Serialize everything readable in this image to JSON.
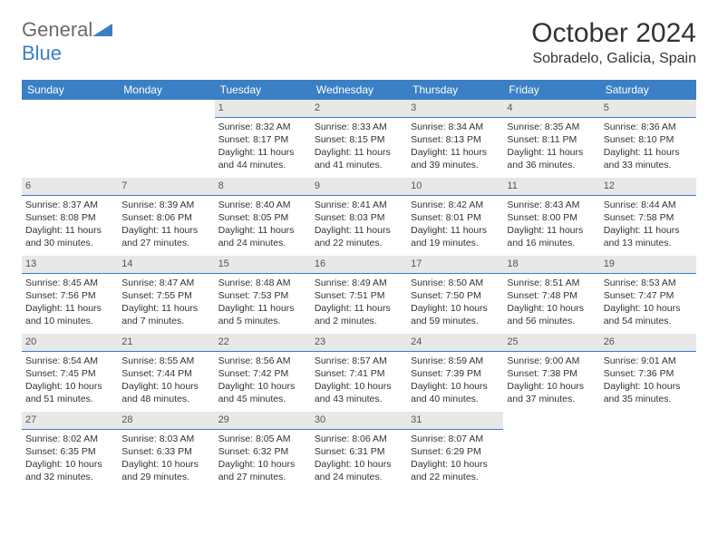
{
  "logo": {
    "word1": "General",
    "word2": "Blue"
  },
  "title": "October 2024",
  "subtitle": "Sobradelo, Galicia, Spain",
  "colors": {
    "header_bg": "#3b7fc4",
    "header_text": "#ffffff",
    "daynum_bg": "#e8e8e8",
    "daynum_border": "#3b7fc4",
    "text": "#333333",
    "logo_gray": "#6b6b6b",
    "logo_blue": "#3b7fc4"
  },
  "day_labels": [
    "Sunday",
    "Monday",
    "Tuesday",
    "Wednesday",
    "Thursday",
    "Friday",
    "Saturday"
  ],
  "weeks": [
    [
      null,
      null,
      {
        "d": "1",
        "sr": "Sunrise: 8:32 AM",
        "ss": "Sunset: 8:17 PM",
        "dl1": "Daylight: 11 hours",
        "dl2": "and 44 minutes."
      },
      {
        "d": "2",
        "sr": "Sunrise: 8:33 AM",
        "ss": "Sunset: 8:15 PM",
        "dl1": "Daylight: 11 hours",
        "dl2": "and 41 minutes."
      },
      {
        "d": "3",
        "sr": "Sunrise: 8:34 AM",
        "ss": "Sunset: 8:13 PM",
        "dl1": "Daylight: 11 hours",
        "dl2": "and 39 minutes."
      },
      {
        "d": "4",
        "sr": "Sunrise: 8:35 AM",
        "ss": "Sunset: 8:11 PM",
        "dl1": "Daylight: 11 hours",
        "dl2": "and 36 minutes."
      },
      {
        "d": "5",
        "sr": "Sunrise: 8:36 AM",
        "ss": "Sunset: 8:10 PM",
        "dl1": "Daylight: 11 hours",
        "dl2": "and 33 minutes."
      }
    ],
    [
      {
        "d": "6",
        "sr": "Sunrise: 8:37 AM",
        "ss": "Sunset: 8:08 PM",
        "dl1": "Daylight: 11 hours",
        "dl2": "and 30 minutes."
      },
      {
        "d": "7",
        "sr": "Sunrise: 8:39 AM",
        "ss": "Sunset: 8:06 PM",
        "dl1": "Daylight: 11 hours",
        "dl2": "and 27 minutes."
      },
      {
        "d": "8",
        "sr": "Sunrise: 8:40 AM",
        "ss": "Sunset: 8:05 PM",
        "dl1": "Daylight: 11 hours",
        "dl2": "and 24 minutes."
      },
      {
        "d": "9",
        "sr": "Sunrise: 8:41 AM",
        "ss": "Sunset: 8:03 PM",
        "dl1": "Daylight: 11 hours",
        "dl2": "and 22 minutes."
      },
      {
        "d": "10",
        "sr": "Sunrise: 8:42 AM",
        "ss": "Sunset: 8:01 PM",
        "dl1": "Daylight: 11 hours",
        "dl2": "and 19 minutes."
      },
      {
        "d": "11",
        "sr": "Sunrise: 8:43 AM",
        "ss": "Sunset: 8:00 PM",
        "dl1": "Daylight: 11 hours",
        "dl2": "and 16 minutes."
      },
      {
        "d": "12",
        "sr": "Sunrise: 8:44 AM",
        "ss": "Sunset: 7:58 PM",
        "dl1": "Daylight: 11 hours",
        "dl2": "and 13 minutes."
      }
    ],
    [
      {
        "d": "13",
        "sr": "Sunrise: 8:45 AM",
        "ss": "Sunset: 7:56 PM",
        "dl1": "Daylight: 11 hours",
        "dl2": "and 10 minutes."
      },
      {
        "d": "14",
        "sr": "Sunrise: 8:47 AM",
        "ss": "Sunset: 7:55 PM",
        "dl1": "Daylight: 11 hours",
        "dl2": "and 7 minutes."
      },
      {
        "d": "15",
        "sr": "Sunrise: 8:48 AM",
        "ss": "Sunset: 7:53 PM",
        "dl1": "Daylight: 11 hours",
        "dl2": "and 5 minutes."
      },
      {
        "d": "16",
        "sr": "Sunrise: 8:49 AM",
        "ss": "Sunset: 7:51 PM",
        "dl1": "Daylight: 11 hours",
        "dl2": "and 2 minutes."
      },
      {
        "d": "17",
        "sr": "Sunrise: 8:50 AM",
        "ss": "Sunset: 7:50 PM",
        "dl1": "Daylight: 10 hours",
        "dl2": "and 59 minutes."
      },
      {
        "d": "18",
        "sr": "Sunrise: 8:51 AM",
        "ss": "Sunset: 7:48 PM",
        "dl1": "Daylight: 10 hours",
        "dl2": "and 56 minutes."
      },
      {
        "d": "19",
        "sr": "Sunrise: 8:53 AM",
        "ss": "Sunset: 7:47 PM",
        "dl1": "Daylight: 10 hours",
        "dl2": "and 54 minutes."
      }
    ],
    [
      {
        "d": "20",
        "sr": "Sunrise: 8:54 AM",
        "ss": "Sunset: 7:45 PM",
        "dl1": "Daylight: 10 hours",
        "dl2": "and 51 minutes."
      },
      {
        "d": "21",
        "sr": "Sunrise: 8:55 AM",
        "ss": "Sunset: 7:44 PM",
        "dl1": "Daylight: 10 hours",
        "dl2": "and 48 minutes."
      },
      {
        "d": "22",
        "sr": "Sunrise: 8:56 AM",
        "ss": "Sunset: 7:42 PM",
        "dl1": "Daylight: 10 hours",
        "dl2": "and 45 minutes."
      },
      {
        "d": "23",
        "sr": "Sunrise: 8:57 AM",
        "ss": "Sunset: 7:41 PM",
        "dl1": "Daylight: 10 hours",
        "dl2": "and 43 minutes."
      },
      {
        "d": "24",
        "sr": "Sunrise: 8:59 AM",
        "ss": "Sunset: 7:39 PM",
        "dl1": "Daylight: 10 hours",
        "dl2": "and 40 minutes."
      },
      {
        "d": "25",
        "sr": "Sunrise: 9:00 AM",
        "ss": "Sunset: 7:38 PM",
        "dl1": "Daylight: 10 hours",
        "dl2": "and 37 minutes."
      },
      {
        "d": "26",
        "sr": "Sunrise: 9:01 AM",
        "ss": "Sunset: 7:36 PM",
        "dl1": "Daylight: 10 hours",
        "dl2": "and 35 minutes."
      }
    ],
    [
      {
        "d": "27",
        "sr": "Sunrise: 8:02 AM",
        "ss": "Sunset: 6:35 PM",
        "dl1": "Daylight: 10 hours",
        "dl2": "and 32 minutes."
      },
      {
        "d": "28",
        "sr": "Sunrise: 8:03 AM",
        "ss": "Sunset: 6:33 PM",
        "dl1": "Daylight: 10 hours",
        "dl2": "and 29 minutes."
      },
      {
        "d": "29",
        "sr": "Sunrise: 8:05 AM",
        "ss": "Sunset: 6:32 PM",
        "dl1": "Daylight: 10 hours",
        "dl2": "and 27 minutes."
      },
      {
        "d": "30",
        "sr": "Sunrise: 8:06 AM",
        "ss": "Sunset: 6:31 PM",
        "dl1": "Daylight: 10 hours",
        "dl2": "and 24 minutes."
      },
      {
        "d": "31",
        "sr": "Sunrise: 8:07 AM",
        "ss": "Sunset: 6:29 PM",
        "dl1": "Daylight: 10 hours",
        "dl2": "and 22 minutes."
      },
      null,
      null
    ]
  ]
}
